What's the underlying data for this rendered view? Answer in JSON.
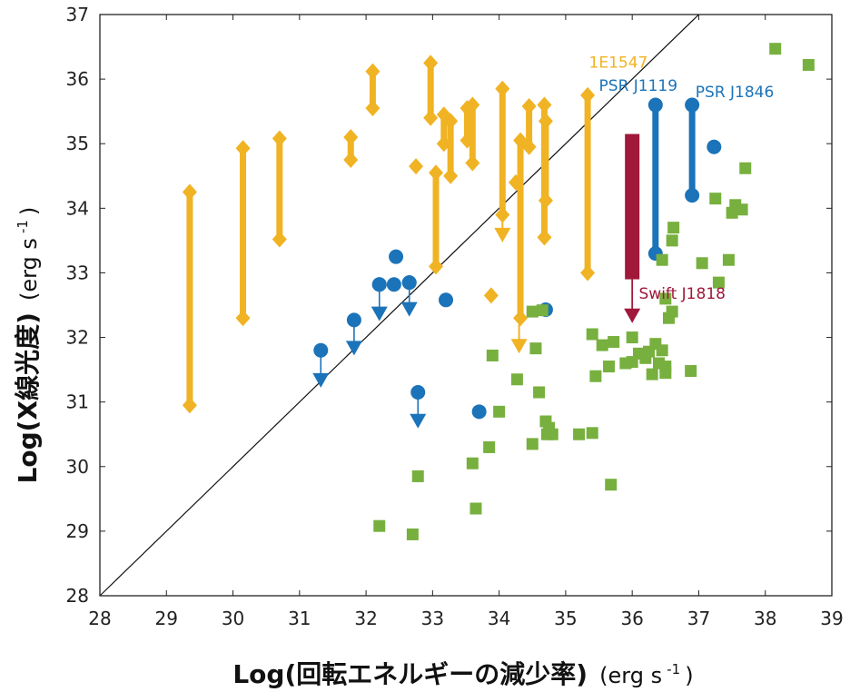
{
  "chart_data": {
    "type": "scatter",
    "xlabel_main": "Log(回転エネルギーの減少率)",
    "xlabel_unit": "(erg s",
    "xlabel_sup": "-1",
    "xlabel_close": ")",
    "ylabel_main": "Log(X線光度)",
    "ylabel_unit": "(erg s",
    "ylabel_sup": "-1",
    "ylabel_close": ")",
    "xlim": [
      28,
      39
    ],
    "ylim": [
      28,
      37
    ],
    "xticks": [
      "28",
      "29",
      "30",
      "31",
      "32",
      "33",
      "34",
      "35",
      "36",
      "37",
      "38",
      "39"
    ],
    "yticks": [
      "28",
      "29",
      "30",
      "31",
      "32",
      "33",
      "34",
      "35",
      "36",
      "37"
    ],
    "grid": false,
    "reference_line": {
      "from": [
        28,
        28
      ],
      "to": [
        37,
        37
      ]
    },
    "colors": {
      "magnetar": "#f0b323",
      "high_b_pulsar": "#1b73b9",
      "rotation_powered": "#77b03e",
      "swift_j1818": "#a0183a"
    },
    "series": [
      {
        "marker": "diamond",
        "color": "#f0b323",
        "ranges": [
          {
            "x": 29.35,
            "ymin": 30.95,
            "ymax": 34.25
          },
          {
            "x": 30.15,
            "ymin": 32.3,
            "ymax": 34.93
          },
          {
            "x": 30.7,
            "ymin": 33.52,
            "ymax": 35.08
          },
          {
            "x": 31.77,
            "ymin": 34.75,
            "ymax": 35.1
          },
          {
            "x": 32.1,
            "ymin": 35.55,
            "ymax": 36.12
          },
          {
            "x": 32.97,
            "ymin": 35.4,
            "ymax": 36.25
          },
          {
            "x": 33.05,
            "ymin": 33.1,
            "ymax": 34.55
          },
          {
            "x": 33.17,
            "ymin": 35.0,
            "ymax": 35.45
          },
          {
            "x": 33.27,
            "ymin": 34.5,
            "ymax": 35.35
          },
          {
            "x": 33.52,
            "ymin": 35.05,
            "ymax": 35.55
          },
          {
            "x": 33.6,
            "ymin": 34.7,
            "ymax": 35.6
          },
          {
            "x": 34.05,
            "ymin": 33.9,
            "ymax": 35.85
          },
          {
            "x": 34.32,
            "ymin": 32.3,
            "ymax": 35.05
          },
          {
            "x": 34.45,
            "ymin": 34.95,
            "ymax": 35.58
          },
          {
            "x": 34.68,
            "ymin": 33.55,
            "ymax": 35.6
          },
          {
            "x": 34.7,
            "ymin": 34.12,
            "ymax": 35.35
          },
          {
            "x": 35.33,
            "ymin": 33.0,
            "ymax": 35.75
          }
        ],
        "points": [
          {
            "x": 32.75,
            "y": 34.65
          },
          {
            "x": 33.88,
            "y": 32.65
          },
          {
            "x": 34.25,
            "y": 34.4
          }
        ],
        "upper_limits": [
          {
            "x": 34.05,
            "y": 33.5
          },
          {
            "x": 34.3,
            "y": 31.78
          }
        ]
      },
      {
        "marker": "circle",
        "color": "#1b73b9",
        "points": [
          {
            "x": 32.45,
            "y": 33.25
          },
          {
            "x": 32.2,
            "y": 32.82
          },
          {
            "x": 32.42,
            "y": 32.82
          },
          {
            "x": 32.65,
            "y": 32.85
          },
          {
            "x": 33.2,
            "y": 32.58
          },
          {
            "x": 33.7,
            "y": 30.85
          },
          {
            "x": 34.7,
            "y": 32.43
          },
          {
            "x": 37.23,
            "y": 34.95
          }
        ],
        "upper_limits": [
          {
            "x": 31.32,
            "y": 31.8,
            "ylim": 31.25
          },
          {
            "x": 31.82,
            "y": 32.27,
            "ylim": 31.75
          },
          {
            "x": 32.2,
            "y": 32.82,
            "ylim": 32.28
          },
          {
            "x": 32.65,
            "y": 32.85,
            "ylim": 32.35
          },
          {
            "x": 32.78,
            "y": 31.15,
            "ylim": 30.62
          }
        ],
        "ranges": [
          {
            "x": 36.35,
            "ymin": 33.3,
            "ymax": 35.6
          },
          {
            "x": 36.9,
            "ymin": 34.2,
            "ymax": 35.6
          }
        ]
      },
      {
        "marker": "square",
        "color": "#77b03e",
        "points": [
          {
            "x": 32.2,
            "y": 29.08
          },
          {
            "x": 32.7,
            "y": 28.95
          },
          {
            "x": 32.78,
            "y": 29.85
          },
          {
            "x": 33.6,
            "y": 30.05
          },
          {
            "x": 33.65,
            "y": 29.35
          },
          {
            "x": 33.85,
            "y": 30.3
          },
          {
            "x": 33.9,
            "y": 31.72
          },
          {
            "x": 34.0,
            "y": 30.85
          },
          {
            "x": 34.27,
            "y": 31.35
          },
          {
            "x": 34.5,
            "y": 30.35
          },
          {
            "x": 34.5,
            "y": 32.4
          },
          {
            "x": 34.55,
            "y": 31.83
          },
          {
            "x": 34.6,
            "y": 31.15
          },
          {
            "x": 34.65,
            "y": 32.42
          },
          {
            "x": 34.7,
            "y": 30.7
          },
          {
            "x": 34.72,
            "y": 30.5
          },
          {
            "x": 34.75,
            "y": 30.6
          },
          {
            "x": 34.8,
            "y": 30.5
          },
          {
            "x": 35.2,
            "y": 30.5
          },
          {
            "x": 35.4,
            "y": 30.52
          },
          {
            "x": 35.4,
            "y": 32.05
          },
          {
            "x": 35.45,
            "y": 31.4
          },
          {
            "x": 35.55,
            "y": 31.88
          },
          {
            "x": 35.65,
            "y": 31.55
          },
          {
            "x": 35.72,
            "y": 31.93
          },
          {
            "x": 35.68,
            "y": 29.72
          },
          {
            "x": 35.9,
            "y": 31.6
          },
          {
            "x": 36.0,
            "y": 31.62
          },
          {
            "x": 36.0,
            "y": 32.0
          },
          {
            "x": 36.1,
            "y": 31.75
          },
          {
            "x": 36.2,
            "y": 31.68
          },
          {
            "x": 36.25,
            "y": 31.78
          },
          {
            "x": 36.3,
            "y": 31.43
          },
          {
            "x": 36.35,
            "y": 31.9
          },
          {
            "x": 36.4,
            "y": 31.6
          },
          {
            "x": 36.45,
            "y": 31.8
          },
          {
            "x": 36.5,
            "y": 31.45
          },
          {
            "x": 36.5,
            "y": 31.55
          },
          {
            "x": 36.5,
            "y": 32.6
          },
          {
            "x": 36.55,
            "y": 32.3
          },
          {
            "x": 36.6,
            "y": 32.4
          },
          {
            "x": 36.45,
            "y": 33.2
          },
          {
            "x": 36.62,
            "y": 33.7
          },
          {
            "x": 36.6,
            "y": 33.5
          },
          {
            "x": 36.88,
            "y": 31.48
          },
          {
            "x": 37.05,
            "y": 33.15
          },
          {
            "x": 37.25,
            "y": 34.15
          },
          {
            "x": 37.3,
            "y": 32.85
          },
          {
            "x": 37.45,
            "y": 33.2
          },
          {
            "x": 37.5,
            "y": 33.93
          },
          {
            "x": 37.55,
            "y": 34.05
          },
          {
            "x": 37.65,
            "y": 33.98
          },
          {
            "x": 37.7,
            "y": 34.62
          },
          {
            "x": 38.15,
            "y": 36.47
          },
          {
            "x": 38.65,
            "y": 36.22
          }
        ]
      },
      {
        "marker": "bar",
        "color": "#a0183a",
        "ranges": [
          {
            "x": 36.0,
            "ymin": 32.9,
            "ymax": 35.15
          }
        ],
        "upper_limits": [
          {
            "x": 36.0,
            "y": 32.9,
            "ylim": 32.25
          }
        ]
      }
    ],
    "annotations": [
      {
        "text": "1E1547",
        "x": 35.35,
        "y": 36.18,
        "color": "#f0b323"
      },
      {
        "text": "PSR J1119",
        "x": 35.5,
        "y": 35.82,
        "color": "#1b73b9"
      },
      {
        "text": "PSR J1846",
        "x": 36.95,
        "y": 35.72,
        "color": "#1b73b9"
      },
      {
        "text": "Swift J1818",
        "x": 36.1,
        "y": 32.6,
        "color": "#a0183a"
      }
    ]
  }
}
